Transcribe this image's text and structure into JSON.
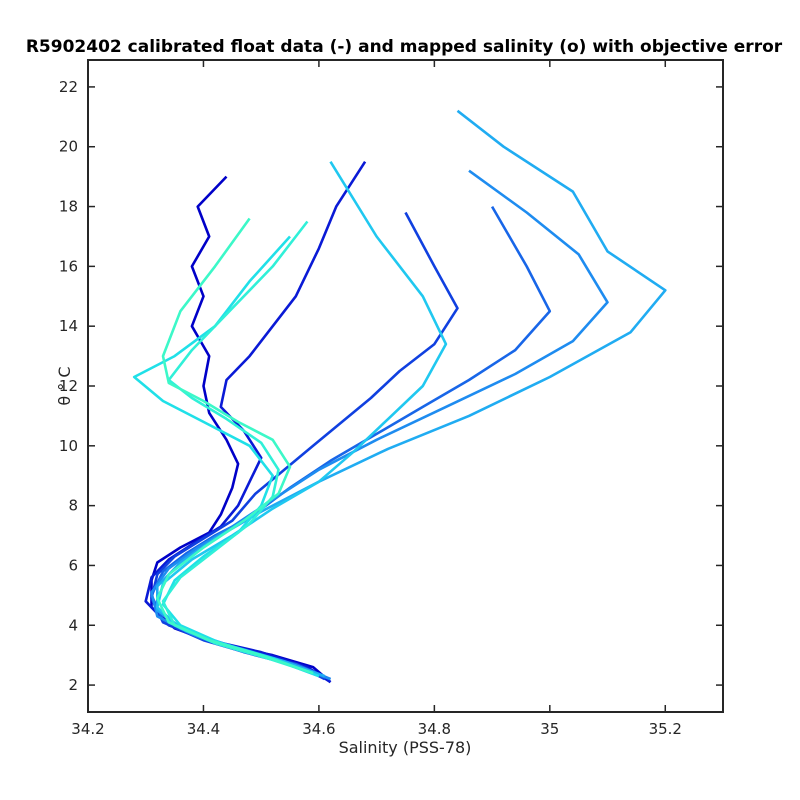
{
  "chart_data": {
    "type": "line",
    "title": "R5902402 calibrated float data (-) and mapped salinity (o) with objective error",
    "xlabel": "Salinity (PSS-78)",
    "ylabel": "θ ° C",
    "xlim": [
      34.2,
      35.3
    ],
    "ylim": [
      1.1,
      22.9
    ],
    "x_ticks": [
      "34.2",
      "34.4",
      "34.6",
      "34.8",
      "35",
      "35.2"
    ],
    "y_ticks": [
      "2",
      "4",
      "6",
      "8",
      "10",
      "12",
      "14",
      "16",
      "18",
      "20",
      "22"
    ],
    "grid": false,
    "legend": "none",
    "colors": [
      "#0000c8",
      "#0a1ad6",
      "#1040e0",
      "#1866e8",
      "#1e8cf0",
      "#20acf2",
      "#20c8f0",
      "#20e0e8",
      "#30f0d8",
      "#3cf8c8"
    ],
    "series": [
      {
        "x": [
          34.62,
          34.59,
          34.52,
          34.42,
          34.35,
          34.31,
          34.31,
          34.32,
          34.36,
          34.41,
          34.43,
          34.45,
          34.46,
          34.44,
          34.41,
          34.4,
          34.41,
          34.38,
          34.4,
          34.38,
          34.41,
          34.39,
          34.44
        ],
        "y": [
          2.1,
          2.6,
          3.0,
          3.4,
          3.9,
          4.6,
          5.5,
          6.1,
          6.6,
          7.1,
          7.7,
          8.6,
          9.4,
          10.2,
          11.1,
          12.0,
          13.0,
          14.0,
          15.0,
          16.0,
          17.0,
          18.0,
          19.0
        ]
      },
      {
        "x": [
          34.62,
          34.58,
          34.5,
          34.41,
          34.34,
          34.3,
          34.31,
          34.34,
          34.38,
          34.43,
          34.46,
          34.48,
          34.5,
          34.47,
          34.43,
          34.44,
          34.48,
          34.52,
          34.56,
          34.6,
          34.63,
          34.68
        ],
        "y": [
          2.1,
          2.6,
          3.1,
          3.5,
          4.0,
          4.8,
          5.6,
          6.2,
          6.7,
          7.3,
          8.0,
          8.8,
          9.6,
          10.5,
          11.3,
          12.2,
          13.0,
          14.0,
          15.0,
          16.6,
          18.0,
          19.5
        ]
      },
      {
        "x": [
          34.61,
          34.57,
          34.49,
          34.4,
          34.33,
          34.31,
          34.32,
          34.35,
          34.4,
          34.45,
          34.49,
          34.54,
          34.59,
          34.64,
          34.69,
          34.74,
          34.8,
          34.84,
          34.8,
          34.75
        ],
        "y": [
          2.2,
          2.6,
          3.0,
          3.5,
          4.1,
          4.9,
          5.7,
          6.3,
          6.9,
          7.5,
          8.4,
          9.2,
          10.0,
          10.8,
          11.6,
          12.5,
          13.4,
          14.6,
          16.0,
          17.8
        ]
      },
      {
        "x": [
          34.62,
          34.56,
          34.47,
          34.39,
          34.33,
          34.31,
          34.33,
          34.37,
          34.42,
          34.48,
          34.55,
          34.62,
          34.7,
          34.78,
          34.86,
          34.94,
          35.0,
          34.96,
          34.9
        ],
        "y": [
          2.2,
          2.7,
          3.1,
          3.6,
          4.2,
          5.0,
          5.8,
          6.4,
          7.0,
          7.6,
          8.6,
          9.5,
          10.4,
          11.3,
          12.2,
          13.2,
          14.5,
          16.0,
          18.0
        ]
      },
      {
        "x": [
          34.62,
          34.55,
          34.46,
          34.38,
          34.32,
          34.31,
          34.34,
          34.39,
          34.45,
          34.52,
          34.6,
          34.7,
          34.82,
          34.94,
          35.04,
          35.1,
          35.05,
          34.96,
          34.86
        ],
        "y": [
          2.2,
          2.7,
          3.2,
          3.7,
          4.3,
          5.1,
          5.9,
          6.6,
          7.3,
          8.2,
          9.2,
          10.2,
          11.3,
          12.4,
          13.5,
          14.8,
          16.4,
          17.8,
          19.2
        ]
      },
      {
        "x": [
          34.61,
          34.54,
          34.45,
          34.37,
          34.32,
          34.32,
          34.36,
          34.42,
          34.5,
          34.6,
          34.72,
          34.86,
          35.0,
          35.14,
          35.2,
          35.1,
          35.04,
          34.92,
          34.84
        ],
        "y": [
          2.3,
          2.8,
          3.3,
          3.8,
          4.5,
          5.3,
          6.1,
          6.9,
          7.8,
          8.8,
          9.9,
          11.0,
          12.3,
          13.8,
          15.2,
          16.5,
          18.5,
          20.0,
          21.2
        ]
      },
      {
        "x": [
          34.6,
          34.53,
          34.44,
          34.36,
          34.32,
          34.33,
          34.38,
          34.45,
          34.52,
          34.6,
          34.66,
          34.72,
          34.78,
          34.82,
          34.78,
          34.7,
          34.62
        ],
        "y": [
          2.3,
          2.8,
          3.3,
          3.9,
          4.6,
          5.4,
          6.2,
          7.0,
          7.9,
          8.8,
          9.8,
          10.9,
          12.0,
          13.4,
          15.0,
          17.0,
          19.5
        ]
      },
      {
        "x": [
          34.6,
          34.52,
          34.43,
          34.36,
          34.33,
          34.35,
          34.4,
          34.46,
          34.5,
          34.52,
          34.48,
          34.4,
          34.33,
          34.28,
          34.35,
          34.42,
          34.48,
          34.55
        ],
        "y": [
          2.3,
          2.9,
          3.4,
          4.0,
          4.7,
          5.5,
          6.3,
          7.1,
          8.0,
          9.0,
          10.0,
          10.8,
          11.5,
          12.3,
          13.0,
          14.0,
          15.5,
          17.0
        ]
      },
      {
        "x": [
          34.59,
          34.51,
          34.42,
          34.35,
          34.33,
          34.36,
          34.42,
          34.48,
          34.52,
          34.53,
          34.5,
          34.44,
          34.38,
          34.34,
          34.38,
          34.45,
          34.52,
          34.58
        ],
        "y": [
          2.4,
          2.9,
          3.4,
          4.0,
          4.8,
          5.6,
          6.5,
          7.4,
          8.3,
          9.2,
          10.1,
          10.9,
          11.6,
          12.2,
          13.2,
          14.6,
          16.0,
          17.5
        ]
      },
      {
        "x": [
          34.59,
          34.5,
          34.41,
          34.34,
          34.32,
          34.34,
          34.4,
          34.47,
          34.53,
          34.55,
          34.52,
          34.46,
          34.4,
          34.34,
          34.33,
          34.36,
          34.42,
          34.48
        ],
        "y": [
          2.4,
          3.0,
          3.5,
          4.1,
          4.9,
          5.7,
          6.6,
          7.5,
          8.4,
          9.3,
          10.2,
          10.8,
          11.5,
          12.1,
          13.0,
          14.5,
          16.0,
          17.6
        ]
      }
    ]
  }
}
